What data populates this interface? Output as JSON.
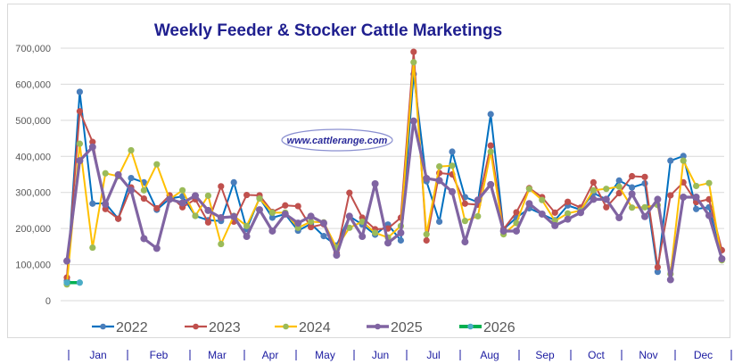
{
  "chart_data": {
    "type": "line",
    "title": "Weekly Feeder & Stocker Cattle Marketings",
    "watermark": "www.cattlerange.com",
    "xlabel": "",
    "ylabel": "",
    "ylim": [
      0,
      700000
    ],
    "yticks": [
      "0",
      "100,000",
      "200,000",
      "300,000",
      "400,000",
      "500,000",
      "600,000",
      "700,000"
    ],
    "grid": true,
    "legend_position": "bottom",
    "month_labels": [
      "Jan",
      "Feb",
      "Mar",
      "Apr",
      "May",
      "Jun",
      "Jul",
      "Aug",
      "Sep",
      "Oct",
      "Nov",
      "Dec"
    ],
    "x_unit": "week of year",
    "series": [
      {
        "name": "2022",
        "line_color": "#0070c0",
        "marker_color": "#4a7ebb",
        "values": [
          55000,
          579000,
          269000,
          270000,
          227000,
          340000,
          328000,
          252000,
          283000,
          289000,
          235000,
          223000,
          221000,
          328000,
          198000,
          285000,
          230000,
          240000,
          194000,
          213000,
          179000,
          153000,
          234000,
          211000,
          183000,
          211000,
          167000,
          628000,
          331000,
          219000,
          413000,
          287000,
          273000,
          517000,
          198000,
          230000,
          256000,
          240000,
          223000,
          264000,
          252000,
          298000,
          281000,
          333000,
          314000,
          325000,
          80000,
          388000,
          401000,
          254000,
          259000,
          116000
        ]
      },
      {
        "name": "2023",
        "line_color": "#c0504d",
        "marker_color": "#c0504d",
        "values": [
          64000,
          525000,
          440000,
          254000,
          227000,
          314000,
          283000,
          256000,
          292000,
          259000,
          281000,
          217000,
          317000,
          219000,
          293000,
          292000,
          246000,
          264000,
          262000,
          204000,
          212000,
          132000,
          299000,
          230000,
          198000,
          200000,
          230000,
          690000,
          167000,
          354000,
          350000,
          269000,
          266000,
          430000,
          198000,
          245000,
          312000,
          287000,
          244000,
          274000,
          258000,
          328000,
          259000,
          298000,
          345000,
          343000,
          93000,
          292000,
          328000,
          273000,
          281000,
          140000
        ]
      },
      {
        "name": "2024",
        "line_color": "#ffc000",
        "marker_color": "#9bbb59",
        "values": [
          45000,
          435000,
          147000,
          353000,
          345000,
          417000,
          306000,
          378000,
          281000,
          306000,
          235000,
          291000,
          157000,
          235000,
          207000,
          283000,
          244000,
          244000,
          202000,
          219000,
          217000,
          147000,
          202000,
          219000,
          188000,
          175000,
          207000,
          661000,
          184000,
          372000,
          374000,
          221000,
          234000,
          413000,
          184000,
          215000,
          310000,
          279000,
          221000,
          242000,
          250000,
          306000,
          310000,
          316000,
          258000,
          259000,
          265000,
          74000,
          388000,
          318000,
          326000,
          112000
        ]
      },
      {
        "name": "2025",
        "line_color": "#8064a2",
        "marker_color": "#8064a2",
        "values": [
          110000,
          388000,
          426000,
          267000,
          349000,
          306000,
          172000,
          145000,
          281000,
          271000,
          291000,
          250000,
          230000,
          233000,
          178000,
          252000,
          193000,
          240000,
          215000,
          234000,
          215000,
          126000,
          234000,
          178000,
          324000,
          160000,
          188000,
          498000,
          339000,
          333000,
          302000,
          163000,
          279000,
          322000,
          193000,
          193000,
          269000,
          240000,
          208000,
          226000,
          244000,
          281000,
          281000,
          230000,
          296000,
          233000,
          281000,
          58000,
          287000,
          287000,
          236000,
          116000
        ]
      },
      {
        "name": "2026",
        "line_color": "#00b050",
        "marker_color": "#4bacc6",
        "values": [
          50000,
          50000
        ]
      }
    ]
  }
}
